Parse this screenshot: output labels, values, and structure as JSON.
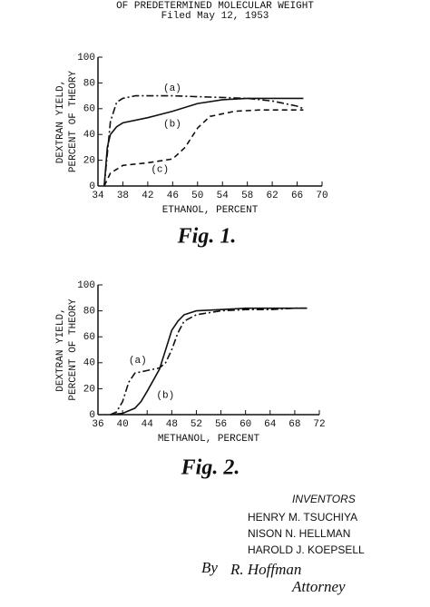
{
  "header": {
    "subtitle": "OF PREDETERMINED MOLECULAR WEIGHT",
    "filed": "Filed May 12, 1953"
  },
  "chart_data": [
    {
      "type": "line",
      "figure_label": "Fig. 1.",
      "x_label": "ETHANOL, PERCENT",
      "y_label": [
        "DEXTRAN YIELD,",
        "PERCENT OF THEORY"
      ],
      "xlim": [
        34,
        70
      ],
      "xticks": [
        34,
        38,
        42,
        46,
        50,
        54,
        58,
        62,
        66,
        70
      ],
      "ylim": [
        0,
        100
      ],
      "yticks": [
        0,
        20,
        40,
        60,
        80,
        100
      ],
      "series": [
        {
          "name": "(a)",
          "color": "#111111",
          "dash": "dashdot",
          "x": [
            35,
            36,
            37,
            38,
            40,
            46,
            52,
            58,
            62,
            66,
            67
          ],
          "values": [
            0,
            50,
            65,
            68,
            70,
            70,
            69,
            68,
            66,
            62,
            60
          ]
        },
        {
          "name": "(b)",
          "color": "#111111",
          "dash": "solid",
          "x": [
            35,
            35.5,
            36,
            37,
            38,
            42,
            46,
            50,
            54,
            58,
            62,
            67
          ],
          "values": [
            0,
            30,
            40,
            46,
            49,
            53,
            58,
            64,
            67,
            68,
            68,
            68
          ]
        },
        {
          "name": "(c)",
          "color": "#111111",
          "dash": "dashed",
          "x": [
            35,
            36,
            38,
            42,
            46,
            48,
            50,
            52,
            56,
            60,
            64,
            67
          ],
          "values": [
            0,
            10,
            16,
            18,
            21,
            30,
            45,
            54,
            58,
            59,
            59,
            59
          ]
        }
      ]
    },
    {
      "type": "line",
      "figure_label": "Fig. 2.",
      "x_label": "METHANOL, PERCENT",
      "y_label": [
        "DEXTRAN YIELD,",
        "PERCENT OF THEORY"
      ],
      "xlim": [
        36,
        72
      ],
      "xticks": [
        36,
        40,
        44,
        48,
        52,
        56,
        60,
        64,
        68,
        72
      ],
      "ylim": [
        0,
        100
      ],
      "yticks": [
        0,
        20,
        40,
        60,
        80,
        100
      ],
      "series": [
        {
          "name": "(a)",
          "color": "#111111",
          "dash": "dashdot",
          "x": [
            38,
            39,
            40,
            41,
            42,
            44,
            46,
            47,
            48,
            49,
            50,
            52,
            56,
            60,
            64,
            68,
            70
          ],
          "values": [
            0,
            2,
            10,
            25,
            32,
            34,
            36,
            40,
            50,
            63,
            72,
            77,
            80,
            81,
            81,
            82,
            82
          ]
        },
        {
          "name": "(b)",
          "color": "#111111",
          "dash": "solid",
          "x": [
            38,
            40,
            42,
            43,
            44,
            46,
            47,
            48,
            49,
            50,
            52,
            56,
            60,
            70
          ],
          "values": [
            0,
            1,
            5,
            10,
            18,
            35,
            50,
            65,
            72,
            77,
            80,
            81,
            82,
            82
          ]
        }
      ]
    }
  ],
  "inventors": {
    "heading": "INVENTORS",
    "names": [
      "HENRY M. TSUCHIYA",
      "NISON N. HELLMAN",
      "HAROLD J. KOEPSELL"
    ],
    "by": "By",
    "signature": "R. Hoffman",
    "role": "Attorney"
  }
}
